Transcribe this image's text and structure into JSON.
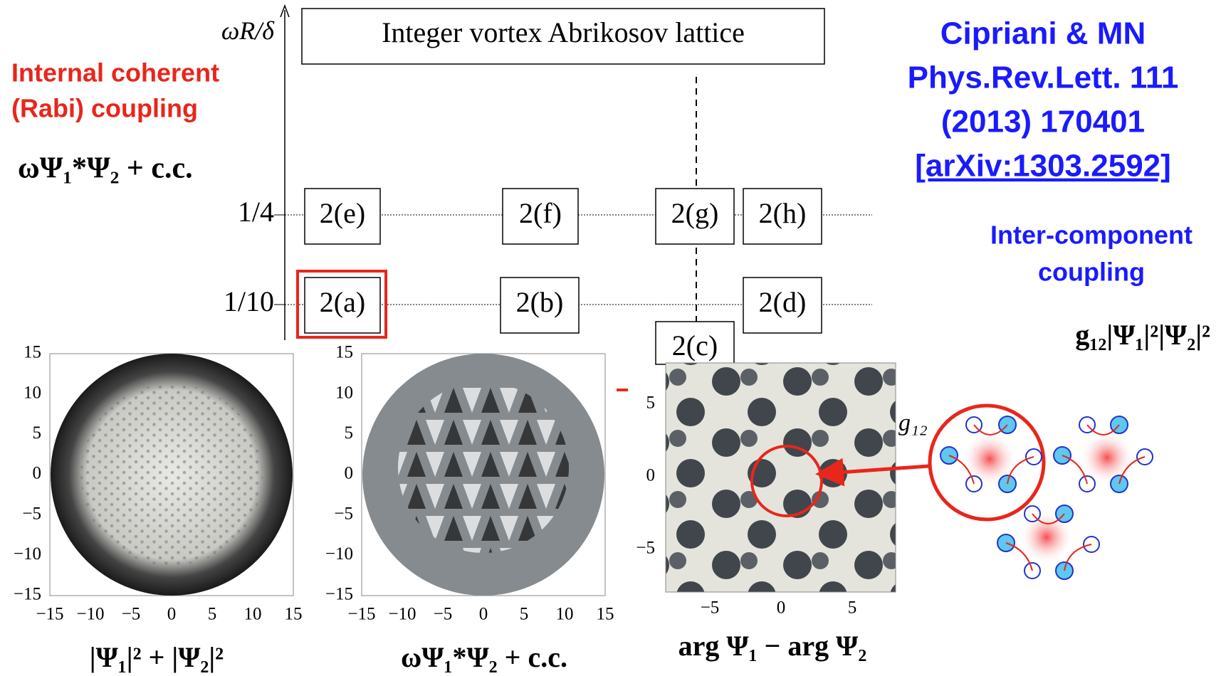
{
  "diagram": {
    "axis_label": "ωR/δ",
    "title": "Integer vortex Abrikosov lattice",
    "levels": [
      "1/4",
      "1/10"
    ],
    "boxes": [
      "2(e)",
      "2(f)",
      "2(g)",
      "2(h)",
      "2(a)",
      "2(b)",
      "2(d)",
      "2(c)"
    ]
  },
  "left_note": {
    "lines": [
      "Internal coherent",
      "(Rabi) coupling"
    ],
    "formula": "ωΨ₁*Ψ₂ + c.c."
  },
  "citation": [
    "Cipriani & MN",
    "Phys.Rev.Lett. 111",
    "(2013) 170401",
    "[arXiv:1303.2592]"
  ],
  "right_note": {
    "lines": [
      "Inter-component",
      "coupling"
    ],
    "formula": "g₁₂|Ψ₁|²|Ψ₂|²",
    "plot_label": "g₁₂"
  },
  "plots": [
    {
      "yticks": [
        "15",
        "10",
        "5",
        "0",
        "−5",
        "−10",
        "−15"
      ],
      "xticks": [
        "−15",
        "−10",
        "−5",
        "0",
        "5",
        "10",
        "15"
      ],
      "caption": "|Ψ₁|² + |Ψ₂|²"
    },
    {
      "yticks": [
        "15",
        "10",
        "5",
        "0",
        "−5",
        "−10",
        "−15"
      ],
      "xticks": [
        "−15",
        "−10",
        "−5",
        "0",
        "5",
        "10",
        "15"
      ],
      "caption": "ωΨ₁*Ψ₂ + c.c."
    },
    {
      "yticks": [
        "5",
        "0",
        "−5"
      ],
      "xticks": [
        "−5",
        "0",
        "5"
      ],
      "caption": "arg Ψ₁ − arg Ψ₂"
    }
  ]
}
